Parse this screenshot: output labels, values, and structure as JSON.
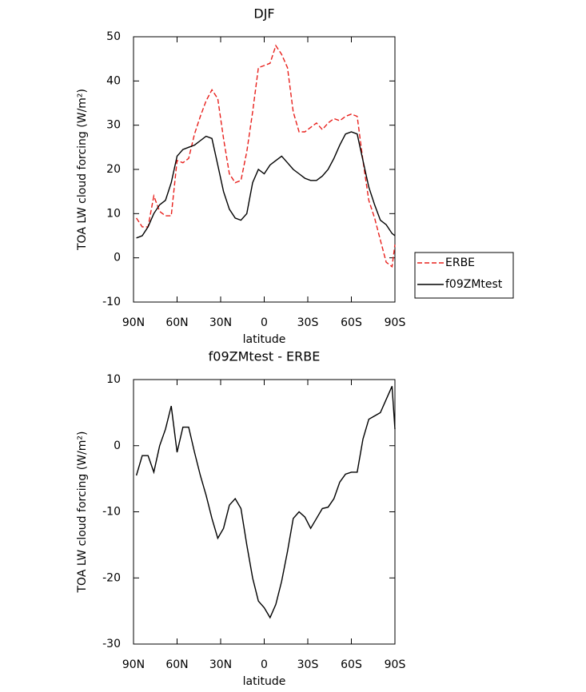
{
  "chart_data": [
    {
      "type": "line",
      "title": "DJF",
      "x_label": "latitude",
      "y_label": "TOA LW cloud forcing (W/m²)",
      "x": [
        88,
        84,
        80,
        76,
        72,
        68,
        64,
        60,
        56,
        52,
        48,
        44,
        40,
        36,
        32,
        28,
        24,
        20,
        16,
        12,
        8,
        4,
        0,
        -4,
        -8,
        -12,
        -16,
        -20,
        -24,
        -28,
        -32,
        -36,
        -40,
        -44,
        -48,
        -52,
        -56,
        -60,
        -64,
        -68,
        -72,
        -76,
        -80,
        -84,
        -88,
        -90
      ],
      "xlim": [
        90,
        -90
      ],
      "xticks": [
        {
          "value": 90,
          "label": "90N"
        },
        {
          "value": 60,
          "label": "60N"
        },
        {
          "value": 30,
          "label": "30N"
        },
        0,
        {
          "value": -30,
          "label": "30S"
        },
        {
          "value": -60,
          "label": "60S"
        },
        {
          "value": -90,
          "label": "90S"
        }
      ],
      "ylim": [
        -10,
        50
      ],
      "yticks": [
        -10,
        0,
        10,
        20,
        30,
        40,
        50
      ],
      "legend": "right",
      "series": [
        {
          "name": "ERBE",
          "color": "#e8201c",
          "line_style": "dashed",
          "values": [
            9,
            7,
            7,
            14,
            10.5,
            9.5,
            9.5,
            22,
            21.5,
            22.5,
            28,
            32,
            35.5,
            38,
            36,
            27,
            19,
            17,
            17.5,
            24,
            33,
            43,
            43.5,
            44,
            48,
            46,
            43,
            33,
            28.5,
            28.5,
            29.5,
            30.5,
            29,
            30.5,
            31.5,
            31,
            32,
            32.5,
            32,
            22,
            13,
            9,
            4,
            -1,
            -2,
            3
          ]
        },
        {
          "name": "f09ZMtest",
          "color": "#000000",
          "line_style": "solid",
          "values": [
            4.5,
            5,
            7,
            10,
            12,
            13,
            17,
            23,
            24.5,
            25,
            25.5,
            26.5,
            27.5,
            27,
            21,
            15,
            11,
            9,
            8.5,
            10,
            17,
            20,
            19,
            21,
            22,
            23,
            21.5,
            20,
            19,
            18,
            17.5,
            17.5,
            18.5,
            20,
            22.5,
            25.5,
            28,
            28.5,
            28,
            22,
            16,
            12,
            8.5,
            7.5,
            5.5,
            5
          ]
        }
      ]
    },
    {
      "type": "line",
      "title": "f09ZMtest - ERBE",
      "x_label": "latitude",
      "y_label": "TOA LW cloud forcing (W/m²)",
      "x": [
        88,
        84,
        80,
        76,
        72,
        68,
        64,
        60,
        56,
        52,
        48,
        44,
        40,
        36,
        32,
        28,
        24,
        20,
        16,
        12,
        8,
        4,
        0,
        -4,
        -8,
        -12,
        -16,
        -20,
        -24,
        -28,
        -32,
        -36,
        -40,
        -44,
        -48,
        -52,
        -56,
        -60,
        -64,
        -68,
        -72,
        -76,
        -80,
        -84,
        -88,
        -90
      ],
      "xlim": [
        90,
        -90
      ],
      "xticks": [
        {
          "value": 90,
          "label": "90N"
        },
        {
          "value": 60,
          "label": "60N"
        },
        {
          "value": 30,
          "label": "30N"
        },
        0,
        {
          "value": -30,
          "label": "30S"
        },
        {
          "value": -60,
          "label": "60S"
        },
        {
          "value": -90,
          "label": "90S"
        }
      ],
      "ylim": [
        -30,
        10
      ],
      "yticks": [
        -30,
        -20,
        -10,
        0,
        10
      ],
      "series": [
        {
          "color": "#000000",
          "line_style": "solid",
          "values": [
            -4.5,
            -1.5,
            -1.5,
            -4,
            0,
            2.5,
            6,
            -1,
            2.8,
            2.8,
            -1,
            -4.5,
            -7.5,
            -11,
            -14,
            -12.5,
            -9,
            -8,
            -9.5,
            -15,
            -20,
            -23.5,
            -24.5,
            -26,
            -24,
            -20.5,
            -16,
            -11,
            -10,
            -10.8,
            -12.5,
            -11,
            -9.5,
            -9.3,
            -8,
            -5.5,
            -4.3,
            -4,
            -4,
            1,
            4,
            4.5,
            5,
            7,
            9,
            2.5
          ]
        }
      ]
    }
  ]
}
